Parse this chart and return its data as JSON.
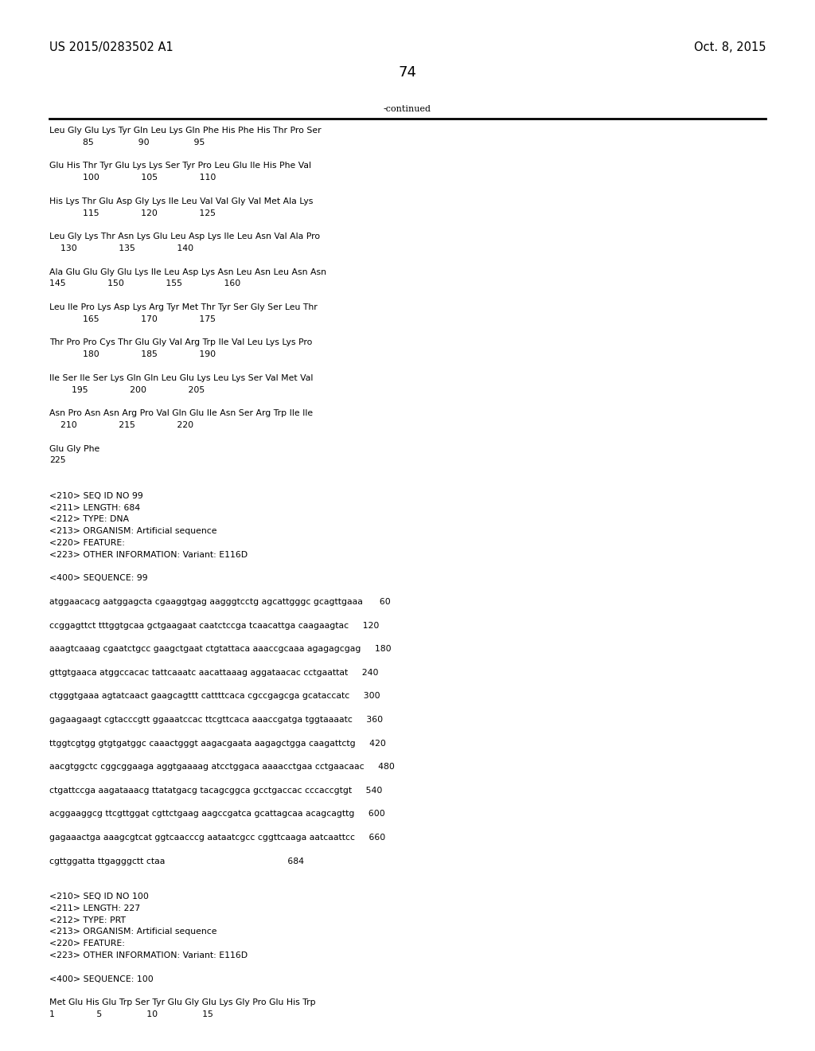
{
  "background_color": "#ffffff",
  "top_left_text": "US 2015/0283502 A1",
  "top_right_text": "Oct. 8, 2015",
  "page_number": "74",
  "continued_text": "-continued",
  "font_size_header": 10.5,
  "font_size_body": 8.0,
  "font_size_page": 13,
  "lines": [
    "Leu Gly Glu Lys Tyr Gln Leu Lys Gln Phe His Phe His Thr Pro Ser",
    "            85                90                95",
    "",
    "Glu His Thr Tyr Glu Lys Lys Ser Tyr Pro Leu Glu Ile His Phe Val",
    "            100               105               110",
    "",
    "His Lys Thr Glu Asp Gly Lys Ile Leu Val Val Gly Val Met Ala Lys",
    "            115               120               125",
    "",
    "Leu Gly Lys Thr Asn Lys Glu Leu Asp Lys Ile Leu Asn Val Ala Pro",
    "    130               135               140",
    "",
    "Ala Glu Glu Gly Glu Lys Ile Leu Asp Lys Asn Leu Asn Leu Asn Asn",
    "145               150               155               160",
    "",
    "Leu Ile Pro Lys Asp Lys Arg Tyr Met Thr Tyr Ser Gly Ser Leu Thr",
    "            165               170               175",
    "",
    "Thr Pro Pro Cys Thr Glu Gly Val Arg Trp Ile Val Leu Lys Lys Pro",
    "            180               185               190",
    "",
    "Ile Ser Ile Ser Lys Gln Gln Leu Glu Lys Leu Lys Ser Val Met Val",
    "        195               200               205",
    "",
    "Asn Pro Asn Asn Arg Pro Val Gln Glu Ile Asn Ser Arg Trp Ile Ile",
    "    210               215               220",
    "",
    "Glu Gly Phe",
    "225",
    "",
    "",
    "<210> SEQ ID NO 99",
    "<211> LENGTH: 684",
    "<212> TYPE: DNA",
    "<213> ORGANISM: Artificial sequence",
    "<220> FEATURE:",
    "<223> OTHER INFORMATION: Variant: E116D",
    "",
    "<400> SEQUENCE: 99",
    "",
    "atggaacacg aatggagcta cgaaggtgag aagggtcctg agcattgggc gcagttgaaa      60",
    "",
    "ccggagttct tttggtgcaa gctgaagaat caatctccga tcaacattga caagaagtac     120",
    "",
    "aaagtcaaag cgaatctgcc gaagctgaat ctgtattaca aaaccgcaaa agagagcgag     180",
    "",
    "gttgtgaaca atggccacac tattcaaatc aacattaaag aggataacac cctgaattat     240",
    "",
    "ctgggtgaaa agtatcaact gaagcagttt cattttcaca cgccgagcga gcataccatc     300",
    "",
    "gagaagaagt cgtacccgtt ggaaatccac ttcgttcaca aaaccgatga tggtaaaatc     360",
    "",
    "ttggtcgtgg gtgtgatggc caaactgggt aagacgaata aagagctgga caagattctg     420",
    "",
    "aacgtggctc cggcggaaga aggtgaaaag atcctggaca aaaacctgaa cctgaacaac     480",
    "",
    "ctgattccga aagataaacg ttatatgacg tacagcggca gcctgaccac cccaccgtgt     540",
    "",
    "acggaaggcg ttcgttggat cgttctgaag aagccgatca gcattagcaa acagcagttg     600",
    "",
    "gagaaactga aaagcgtcat ggtcaacccg aataatcgcc cggttcaaga aatcaattcc     660",
    "",
    "cgttggatta ttgagggctt ctaa                                            684",
    "",
    "",
    "<210> SEQ ID NO 100",
    "<211> LENGTH: 227",
    "<212> TYPE: PRT",
    "<213> ORGANISM: Artificial sequence",
    "<220> FEATURE:",
    "<223> OTHER INFORMATION: Variant: E116D",
    "",
    "<400> SEQUENCE: 100",
    "",
    "Met Glu His Glu Trp Ser Tyr Glu Gly Glu Lys Gly Pro Glu His Trp",
    "1               5                10                15"
  ]
}
